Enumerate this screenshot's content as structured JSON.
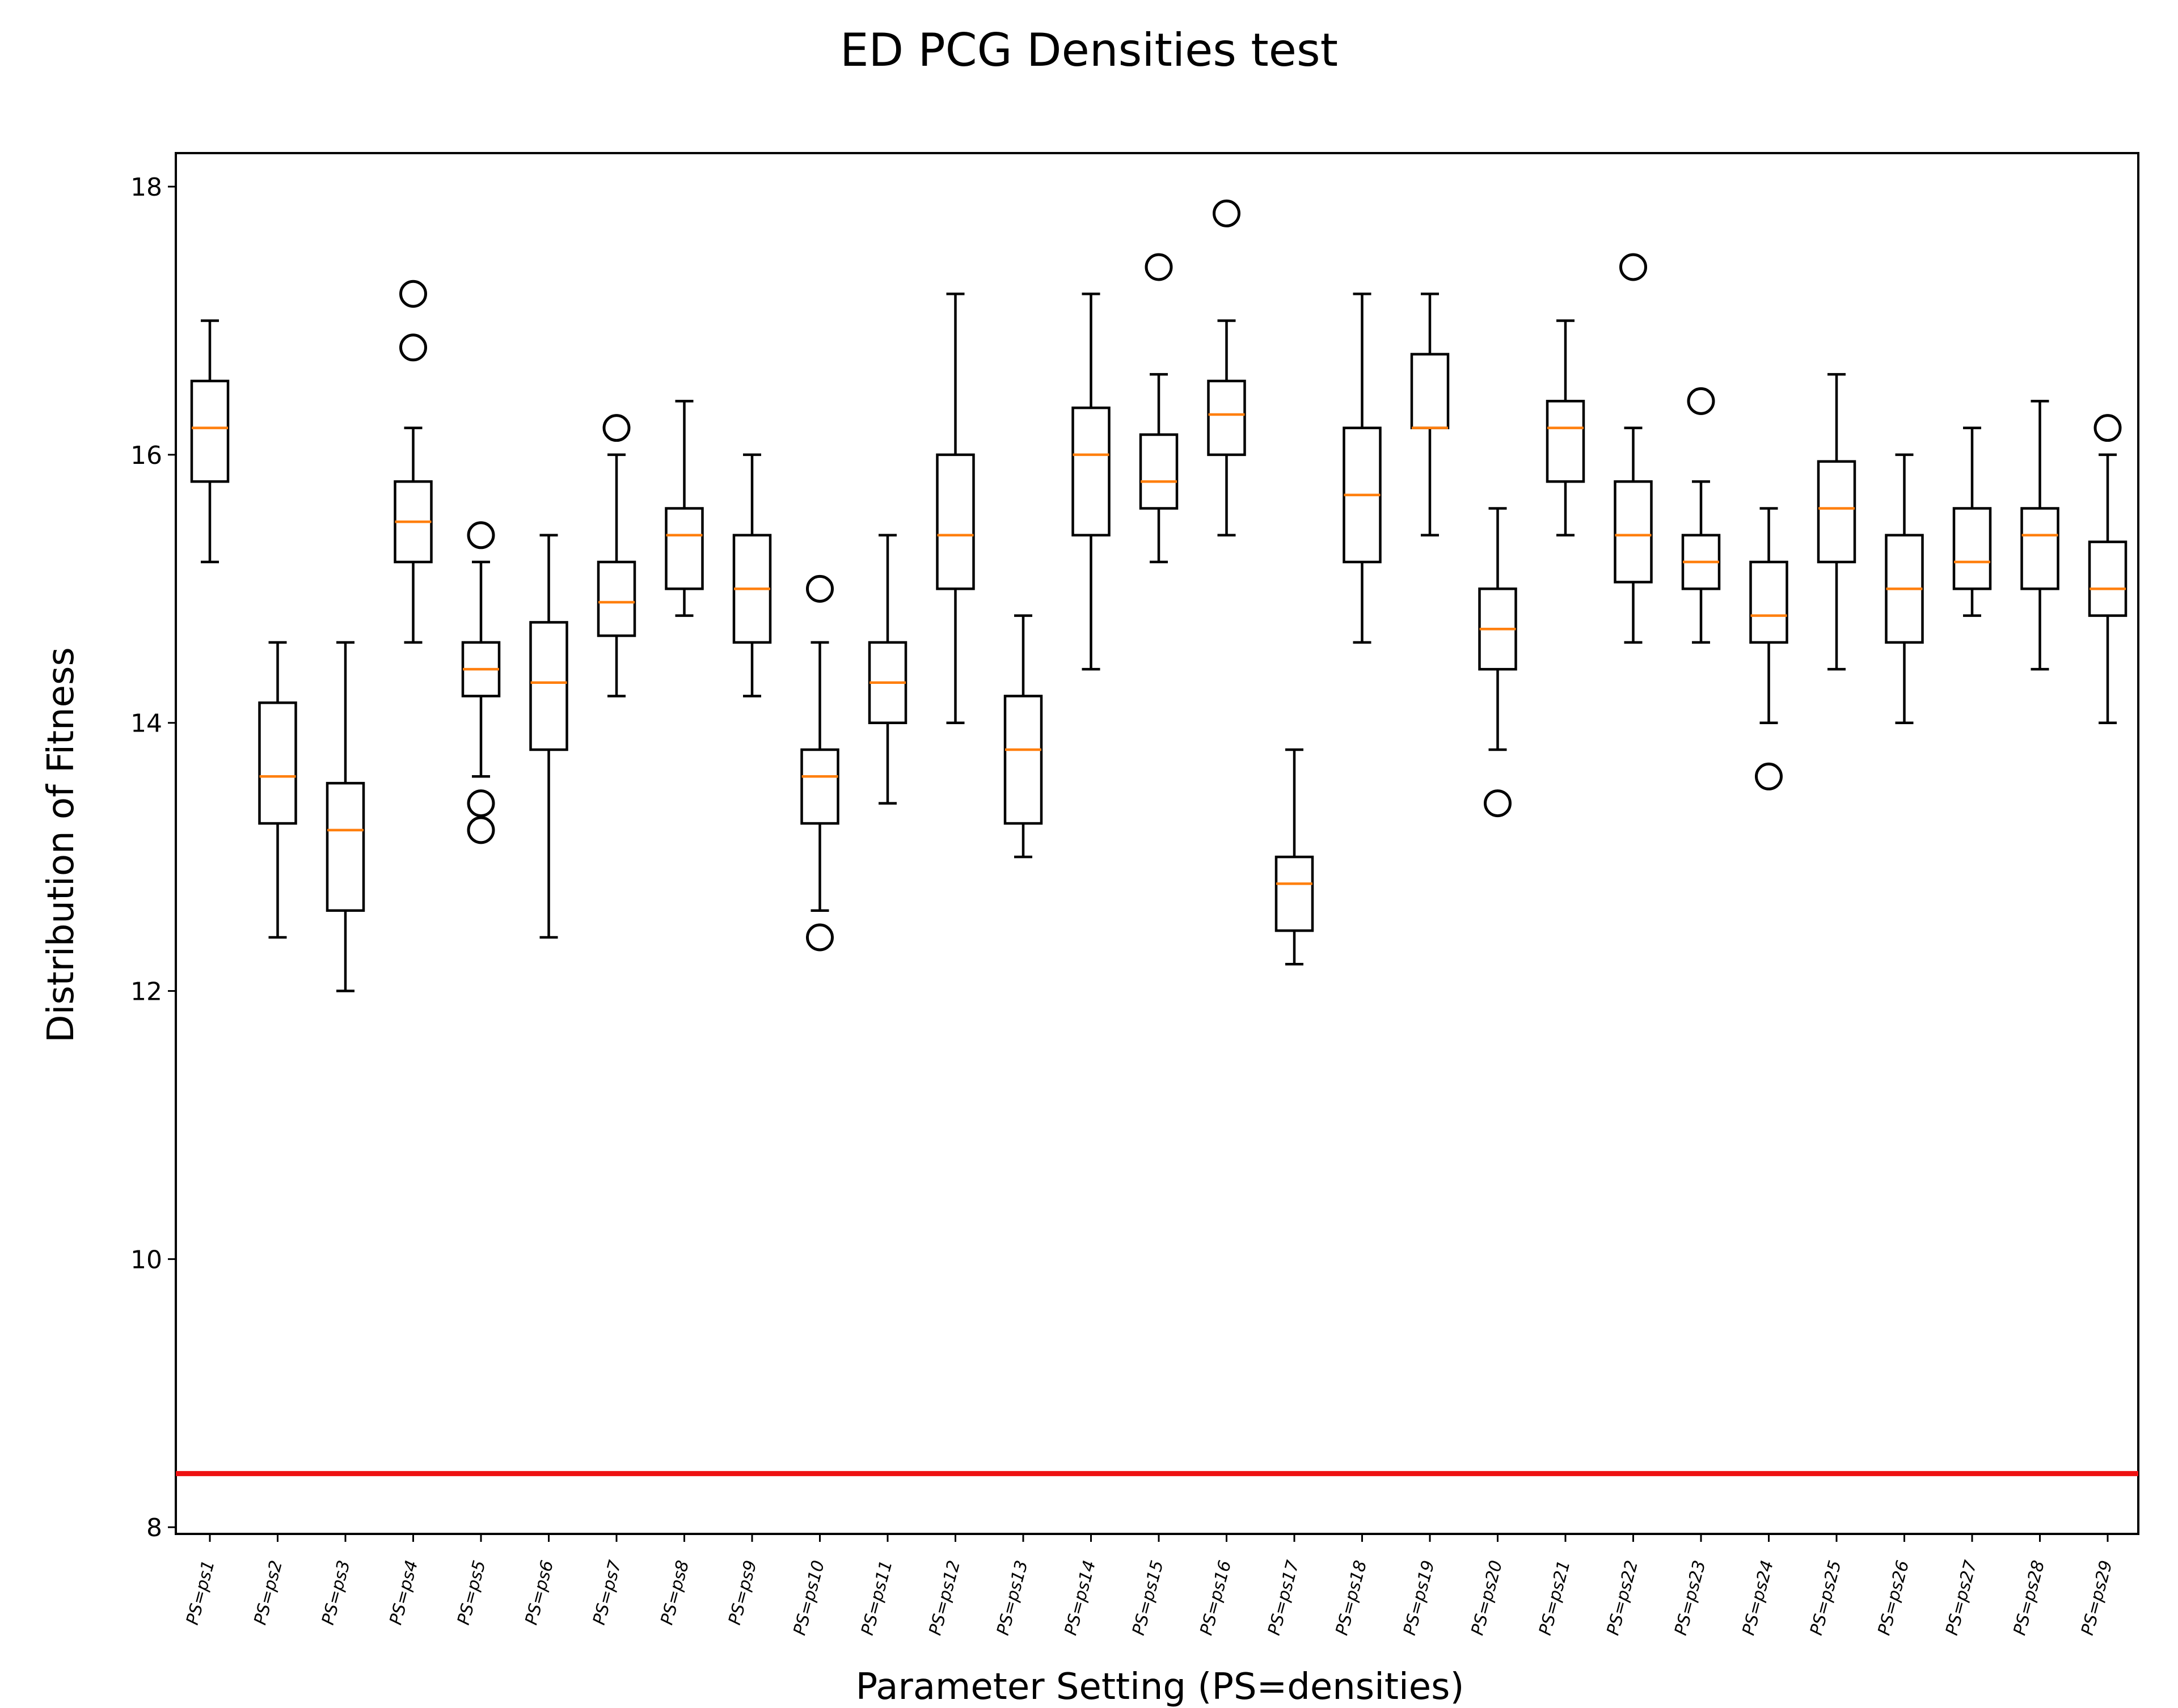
{
  "chart_data": {
    "type": "boxplot",
    "title": "ED PCG Densities test",
    "xlabel": "Parameter Setting (PS=densities)",
    "ylabel": "Distribution of Fitness",
    "ylim": [
      7.95,
      18.25
    ],
    "yticks": [
      8,
      10,
      12,
      14,
      16,
      18
    ],
    "grid": false,
    "reference_line": {
      "y": 8.4,
      "color": "#ee1111"
    },
    "box_color": "#000000",
    "median_color": "#ff7f0e",
    "categories": [
      "PS=ps1",
      "PS=ps2",
      "PS=ps3",
      "PS=ps4",
      "PS=ps5",
      "PS=ps6",
      "PS=ps7",
      "PS=ps8",
      "PS=ps9",
      "PS=ps10",
      "PS=ps11",
      "PS=ps12",
      "PS=ps13",
      "PS=ps14",
      "PS=ps15",
      "PS=ps16",
      "PS=ps17",
      "PS=ps18",
      "PS=ps19",
      "PS=ps20",
      "PS=ps21",
      "PS=ps22",
      "PS=ps23",
      "PS=ps24",
      "PS=ps25",
      "PS=ps26",
      "PS=ps27",
      "PS=ps28",
      "PS=ps29"
    ],
    "boxes": [
      {
        "whislo": 15.2,
        "q1": 15.8,
        "med": 16.2,
        "q3": 16.55,
        "whishi": 17.0,
        "fliers": []
      },
      {
        "whislo": 12.4,
        "q1": 13.25,
        "med": 13.6,
        "q3": 14.15,
        "whishi": 14.6,
        "fliers": []
      },
      {
        "whislo": 12.0,
        "q1": 12.6,
        "med": 13.2,
        "q3": 13.55,
        "whishi": 14.6,
        "fliers": []
      },
      {
        "whislo": 14.6,
        "q1": 15.2,
        "med": 15.5,
        "q3": 15.8,
        "whishi": 16.2,
        "fliers": [
          17.2,
          16.8
        ]
      },
      {
        "whislo": 13.6,
        "q1": 14.2,
        "med": 14.4,
        "q3": 14.6,
        "whishi": 15.2,
        "fliers": [
          15.4,
          13.4,
          13.2
        ]
      },
      {
        "whislo": 12.4,
        "q1": 13.8,
        "med": 14.3,
        "q3": 14.75,
        "whishi": 15.4,
        "fliers": []
      },
      {
        "whislo": 14.2,
        "q1": 14.65,
        "med": 14.9,
        "q3": 15.2,
        "whishi": 16.0,
        "fliers": [
          16.2
        ]
      },
      {
        "whislo": 14.8,
        "q1": 15.0,
        "med": 15.4,
        "q3": 15.6,
        "whishi": 16.4,
        "fliers": []
      },
      {
        "whislo": 14.2,
        "q1": 14.6,
        "med": 15.0,
        "q3": 15.4,
        "whishi": 16.0,
        "fliers": []
      },
      {
        "whislo": 12.6,
        "q1": 13.25,
        "med": 13.6,
        "q3": 13.8,
        "whishi": 14.6,
        "fliers": [
          15.0,
          12.4
        ]
      },
      {
        "whislo": 13.4,
        "q1": 14.0,
        "med": 14.3,
        "q3": 14.6,
        "whishi": 15.4,
        "fliers": []
      },
      {
        "whislo": 14.0,
        "q1": 15.0,
        "med": 15.4,
        "q3": 16.0,
        "whishi": 17.2,
        "fliers": []
      },
      {
        "whislo": 13.0,
        "q1": 13.25,
        "med": 13.8,
        "q3": 14.2,
        "whishi": 14.8,
        "fliers": []
      },
      {
        "whislo": 14.4,
        "q1": 15.4,
        "med": 16.0,
        "q3": 16.35,
        "whishi": 17.2,
        "fliers": []
      },
      {
        "whislo": 15.2,
        "q1": 15.6,
        "med": 15.8,
        "q3": 16.15,
        "whishi": 16.6,
        "fliers": [
          17.4
        ]
      },
      {
        "whislo": 15.4,
        "q1": 16.0,
        "med": 16.3,
        "q3": 16.55,
        "whishi": 17.0,
        "fliers": [
          17.8
        ]
      },
      {
        "whislo": 12.2,
        "q1": 12.45,
        "med": 12.8,
        "q3": 13.0,
        "whishi": 13.8,
        "fliers": []
      },
      {
        "whislo": 14.6,
        "q1": 15.2,
        "med": 15.7,
        "q3": 16.2,
        "whishi": 17.2,
        "fliers": []
      },
      {
        "whislo": 15.4,
        "q1": 16.2,
        "med": 16.2,
        "q3": 16.75,
        "whishi": 17.2,
        "fliers": []
      },
      {
        "whislo": 13.8,
        "q1": 14.4,
        "med": 14.7,
        "q3": 15.0,
        "whishi": 15.6,
        "fliers": [
          13.4
        ]
      },
      {
        "whislo": 15.4,
        "q1": 15.8,
        "med": 16.2,
        "q3": 16.4,
        "whishi": 17.0,
        "fliers": []
      },
      {
        "whislo": 14.6,
        "q1": 15.05,
        "med": 15.4,
        "q3": 15.8,
        "whishi": 16.2,
        "fliers": [
          17.4
        ]
      },
      {
        "whislo": 14.6,
        "q1": 15.0,
        "med": 15.2,
        "q3": 15.4,
        "whishi": 15.8,
        "fliers": [
          16.4
        ]
      },
      {
        "whislo": 14.0,
        "q1": 14.6,
        "med": 14.8,
        "q3": 15.2,
        "whishi": 15.6,
        "fliers": [
          13.6
        ]
      },
      {
        "whislo": 14.4,
        "q1": 15.2,
        "med": 15.6,
        "q3": 15.95,
        "whishi": 16.6,
        "fliers": []
      },
      {
        "whislo": 14.0,
        "q1": 14.6,
        "med": 15.0,
        "q3": 15.4,
        "whishi": 16.0,
        "fliers": []
      },
      {
        "whislo": 14.8,
        "q1": 15.0,
        "med": 15.2,
        "q3": 15.6,
        "whishi": 16.2,
        "fliers": []
      },
      {
        "whislo": 14.4,
        "q1": 15.0,
        "med": 15.4,
        "q3": 15.6,
        "whishi": 16.4,
        "fliers": []
      },
      {
        "whislo": 14.0,
        "q1": 14.8,
        "med": 15.0,
        "q3": 15.35,
        "whishi": 16.0,
        "fliers": [
          16.2
        ]
      }
    ]
  }
}
